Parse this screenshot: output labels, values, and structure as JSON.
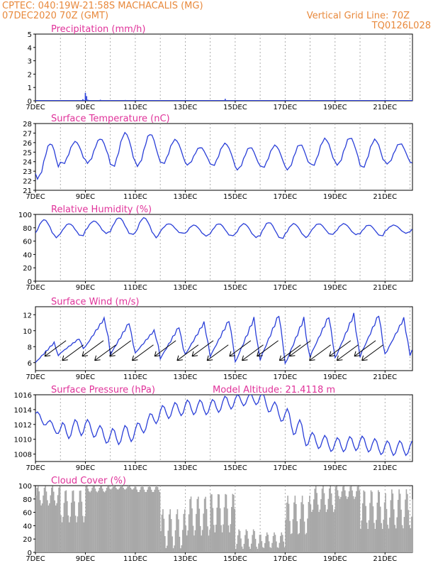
{
  "header": {
    "line1_left": "CPTEC:   040:19W-21:58S   MACHACALIS (MG)",
    "line2_left": "07DEC2020 70Z (GMT)",
    "line1_right": "Vertical Grid Line: 70Z",
    "line2_right": "TQ0126L028",
    "model_altitude": "Model Altitude: 21.4118 m"
  },
  "colors": {
    "header": "#e8893c",
    "title": "#e0339a",
    "line": "#2a3fd8",
    "cloud": "#a8a8a8",
    "grid": "#999999"
  },
  "x_labels": [
    "7DEC",
    "9DEC",
    "11DEC",
    "13DEC",
    "15DEC",
    "17DEC",
    "19DEC",
    "21DEC"
  ],
  "chart_data": [
    {
      "id": "precip",
      "type": "bar",
      "title": "Precipitation (mm/h)",
      "ylim": [
        0,
        5
      ],
      "yticks": [
        0,
        1,
        2,
        3,
        4,
        5
      ],
      "x_range_days": [
        7,
        22.1
      ],
      "events": [
        {
          "day": 7.1,
          "value": 0.04
        },
        {
          "day": 7.6,
          "value": 0.05
        },
        {
          "day": 8.3,
          "value": 0.05
        },
        {
          "day": 8.9,
          "value": 0.12
        },
        {
          "day": 9.0,
          "value": 0.6
        },
        {
          "day": 9.05,
          "value": 0.35
        },
        {
          "day": 9.1,
          "value": 0.08
        },
        {
          "day": 9.6,
          "value": 0.08
        },
        {
          "day": 10.2,
          "value": 0.05
        },
        {
          "day": 10.6,
          "value": 0.06
        },
        {
          "day": 14.6,
          "value": 0.15
        }
      ]
    },
    {
      "id": "temp",
      "type": "line",
      "title": "Surface Temperature (nC)",
      "ylim": [
        21,
        28
      ],
      "yticks": [
        21,
        22,
        23,
        24,
        25,
        26,
        27,
        28
      ],
      "x_range_days": [
        7,
        22.1
      ],
      "daily_min": [
        22.3,
        23.8,
        23.9,
        23.5,
        23.6,
        23.8,
        23.7,
        23.6,
        23.2,
        23.4,
        23.2,
        23.6,
        23.7,
        23.4,
        23.8
      ],
      "daily_max": [
        25.9,
        26.1,
        26.4,
        27.0,
        26.9,
        26.3,
        25.5,
        25.9,
        25.5,
        25.7,
        25.8,
        26.4,
        26.5,
        26.3,
        25.9
      ]
    },
    {
      "id": "rh",
      "type": "line",
      "title": "Relative Humidity (%)",
      "ylim": [
        0,
        100
      ],
      "yticks": [
        0,
        20,
        40,
        60,
        80,
        100
      ],
      "x_range_days": [
        7,
        22.1
      ],
      "daily_min": [
        66,
        68,
        72,
        70,
        66,
        72,
        68,
        68,
        66,
        64,
        66,
        70,
        70,
        68,
        72
      ],
      "daily_max": [
        92,
        86,
        90,
        95,
        95,
        86,
        84,
        86,
        86,
        88,
        86,
        86,
        86,
        84,
        84
      ]
    },
    {
      "id": "wind",
      "type": "line",
      "title": "Surface Wind (m/s)",
      "ylim": [
        5,
        13
      ],
      "yticks": [
        6,
        8,
        10,
        12
      ],
      "x_range_days": [
        7,
        22.1
      ],
      "daily_min": [
        6.0,
        7.2,
        8.0,
        7.0,
        7.2,
        6.5,
        7.0,
        6.8,
        6.0,
        6.4,
        5.8,
        6.8,
        6.5,
        6.8,
        7.0
      ],
      "daily_max": [
        8.5,
        9.0,
        11.5,
        11.0,
        10.0,
        10.5,
        11.0,
        11.3,
        11.5,
        12.0,
        11.5,
        11.8,
        12.0,
        12.0,
        11.5
      ],
      "arrows_days": [
        7.6,
        8.3,
        9.1,
        9.6,
        10.2,
        11.1,
        12.0,
        12.9,
        13.5,
        14.1,
        15.0,
        15.5,
        16.1,
        17.0,
        17.4,
        18.2,
        19.0,
        19.3,
        20.0,
        20.3
      ],
      "arrow_direction": "toward lower-left"
    },
    {
      "id": "pressure",
      "type": "line",
      "title": "Surface Pressure (hPa)",
      "ylim": [
        1007,
        1016
      ],
      "yticks": [
        1008,
        1010,
        1012,
        1014,
        1016
      ],
      "x_range_days": [
        7,
        22.1
      ],
      "daily_level": [
        1013.3,
        1011.0,
        1011.8,
        1010.2,
        1011.0,
        1013.5,
        1014.3,
        1014.3,
        1015.2,
        1015.5,
        1013.0,
        1010.0,
        1009.2,
        1009.5,
        1008.8
      ],
      "daily_amplitude": [
        0.6,
        1.2,
        1.0,
        1.2,
        1.0,
        1.0,
        1.0,
        1.0,
        0.8,
        1.0,
        1.4,
        1.0,
        1.0,
        1.0,
        1.0
      ]
    },
    {
      "id": "cloud",
      "type": "area",
      "title": "Cloud Cover (%)",
      "ylim": [
        0,
        100
      ],
      "yticks": [
        0,
        20,
        40,
        60,
        80,
        100
      ],
      "x_range_days": [
        7,
        22.1
      ],
      "daily_level": [
        85,
        70,
        95,
        97,
        95,
        35,
        55,
        60,
        20,
        18,
        55,
        80,
        90,
        65,
        65
      ],
      "daily_variation": [
        15,
        25,
        5,
        3,
        5,
        30,
        30,
        30,
        15,
        12,
        30,
        20,
        10,
        30,
        30
      ]
    }
  ]
}
